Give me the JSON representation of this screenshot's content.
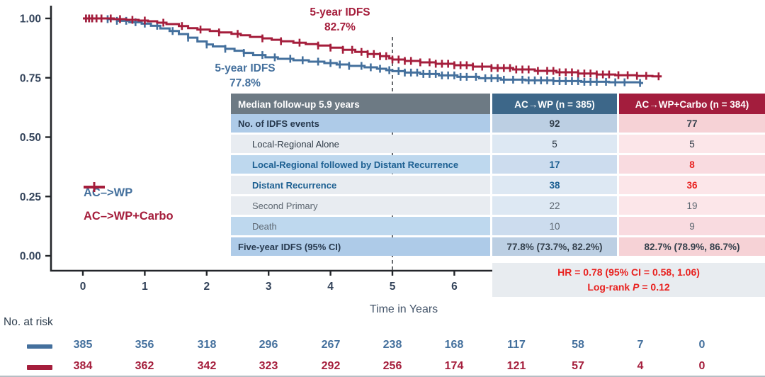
{
  "colors": {
    "wp_blue": "#44709d",
    "carbo_red": "#a51e3c",
    "bright_red": "#e8211f",
    "table_header_gray": "#6d7a84",
    "table_header_blue": "#3d6789",
    "table_header_red": "#a31d3d",
    "axis_text": "#33435a"
  },
  "chart_data": {
    "type": "line",
    "subtype": "kaplan-meier",
    "xlabel": "Time in Years",
    "ylabel": "",
    "xlim": [
      0,
      10.2
    ],
    "ylim": [
      0,
      1
    ],
    "x_ticks": [
      0,
      1,
      2,
      3,
      4,
      5,
      6
    ],
    "y_ticks": [
      {
        "label": "1.00",
        "value": 1.0
      },
      {
        "label": "0.75",
        "value": 0.75
      },
      {
        "label": "0.50",
        "value": 0.5
      },
      {
        "label": "0.25",
        "value": 0.25
      },
      {
        "label": "0.00",
        "value": 0.0
      }
    ],
    "reference_line_year": 5,
    "legend_position": "inside-left",
    "series": [
      {
        "name": "AC–>WP",
        "color": "#44709d",
        "five_year_idfs": "77.8%",
        "points": [
          [
            0,
            1.0
          ],
          [
            0.4,
            0.997
          ],
          [
            0.55,
            0.99
          ],
          [
            0.75,
            0.984
          ],
          [
            0.95,
            0.978
          ],
          [
            1.1,
            0.969
          ],
          [
            1.25,
            0.958
          ],
          [
            1.4,
            0.947
          ],
          [
            1.55,
            0.934
          ],
          [
            1.7,
            0.919
          ],
          [
            1.85,
            0.903
          ],
          [
            2.0,
            0.89
          ],
          [
            2.1,
            0.882
          ],
          [
            2.3,
            0.872
          ],
          [
            2.45,
            0.864
          ],
          [
            2.6,
            0.855
          ],
          [
            2.75,
            0.846
          ],
          [
            2.95,
            0.836
          ],
          [
            3.15,
            0.83
          ],
          [
            3.4,
            0.824
          ],
          [
            3.65,
            0.818
          ],
          [
            3.9,
            0.812
          ],
          [
            4.1,
            0.806
          ],
          [
            4.3,
            0.8
          ],
          [
            4.55,
            0.794
          ],
          [
            4.75,
            0.788
          ],
          [
            4.9,
            0.782
          ],
          [
            5.0,
            0.778
          ],
          [
            5.2,
            0.772
          ],
          [
            5.45,
            0.766
          ],
          [
            5.75,
            0.76
          ],
          [
            6.05,
            0.754
          ],
          [
            6.4,
            0.748
          ],
          [
            6.75,
            0.742
          ],
          [
            7.15,
            0.739
          ],
          [
            7.6,
            0.736
          ],
          [
            8.05,
            0.733
          ],
          [
            8.5,
            0.731
          ],
          [
            9.0,
            0.728
          ],
          [
            9.05,
            0.728
          ]
        ],
        "censor_years": [
          0.05,
          0.1,
          0.15,
          0.22,
          0.3,
          0.4,
          0.55,
          0.7,
          0.85,
          1.0,
          1.2,
          1.45,
          1.7,
          2.0,
          2.3,
          2.6,
          2.9,
          3.1,
          3.35,
          3.55,
          3.8,
          4.0,
          4.15,
          4.3,
          4.5,
          4.65,
          4.8,
          4.95,
          5.1,
          5.2,
          5.3,
          5.4,
          5.5,
          5.6,
          5.7,
          5.8,
          5.9,
          6.0,
          6.1,
          6.2,
          6.35,
          6.5,
          6.6,
          6.7,
          6.8,
          6.95,
          7.1,
          7.2,
          7.3,
          7.4,
          7.5,
          7.6,
          7.7,
          7.8,
          7.9,
          8.0,
          8.1,
          8.2,
          8.3,
          8.45,
          8.6,
          8.75,
          9.0
        ]
      },
      {
        "name": "AC–>WP+Carbo",
        "color": "#a51e3c",
        "five_year_idfs": "82.7%",
        "points": [
          [
            0,
            1.0
          ],
          [
            0.5,
            0.997
          ],
          [
            0.7,
            0.994
          ],
          [
            0.9,
            0.991
          ],
          [
            1.05,
            0.988
          ],
          [
            1.2,
            0.982
          ],
          [
            1.35,
            0.976
          ],
          [
            1.55,
            0.968
          ],
          [
            1.7,
            0.959
          ],
          [
            1.85,
            0.953
          ],
          [
            2.05,
            0.947
          ],
          [
            2.2,
            0.941
          ],
          [
            2.4,
            0.935
          ],
          [
            2.55,
            0.929
          ],
          [
            2.7,
            0.922
          ],
          [
            2.9,
            0.916
          ],
          [
            3.05,
            0.91
          ],
          [
            3.2,
            0.904
          ],
          [
            3.4,
            0.898
          ],
          [
            3.6,
            0.892
          ],
          [
            3.8,
            0.886
          ],
          [
            4.0,
            0.877
          ],
          [
            4.2,
            0.868
          ],
          [
            4.4,
            0.859
          ],
          [
            4.6,
            0.85
          ],
          [
            4.8,
            0.841
          ],
          [
            4.95,
            0.832
          ],
          [
            5.0,
            0.827
          ],
          [
            5.2,
            0.821
          ],
          [
            5.45,
            0.815
          ],
          [
            5.7,
            0.809
          ],
          [
            6.0,
            0.803
          ],
          [
            6.3,
            0.797
          ],
          [
            6.6,
            0.791
          ],
          [
            6.95,
            0.785
          ],
          [
            7.3,
            0.779
          ],
          [
            7.65,
            0.773
          ],
          [
            8.0,
            0.768
          ],
          [
            8.3,
            0.764
          ],
          [
            8.6,
            0.761
          ],
          [
            8.95,
            0.758
          ],
          [
            9.2,
            0.756
          ],
          [
            9.35,
            0.756
          ]
        ],
        "censor_years": [
          0.05,
          0.1,
          0.15,
          0.22,
          0.3,
          0.45,
          0.6,
          0.8,
          1.0,
          1.3,
          1.6,
          1.9,
          2.2,
          2.5,
          2.9,
          3.2,
          3.5,
          3.8,
          4.0,
          4.2,
          4.35,
          4.5,
          4.6,
          4.7,
          4.8,
          4.9,
          5.0,
          5.1,
          5.2,
          5.3,
          5.45,
          5.6,
          5.7,
          5.8,
          5.9,
          6.0,
          6.1,
          6.2,
          6.3,
          6.45,
          6.6,
          6.7,
          6.8,
          6.9,
          7.0,
          7.1,
          7.2,
          7.35,
          7.5,
          7.6,
          7.7,
          7.8,
          7.9,
          8.0,
          8.1,
          8.2,
          8.3,
          8.4,
          8.5,
          8.65,
          8.8,
          8.95,
          9.1,
          9.3
        ]
      }
    ],
    "annotations": [
      {
        "line1": "5-year IDFS",
        "line2": "82.7%",
        "series": "AC–>WP+Carbo"
      },
      {
        "line1": "5-year IDFS",
        "line2": "77.8%",
        "series": "AC–>WP"
      }
    ],
    "risk_table": {
      "label": "No. at risk",
      "years": [
        0,
        1,
        2,
        3,
        4,
        5,
        6,
        7,
        8,
        9,
        10
      ],
      "rows": [
        {
          "name": "AC–>WP",
          "color": "#44709d",
          "counts": [
            385,
            356,
            318,
            296,
            267,
            238,
            168,
            117,
            58,
            7,
            0
          ]
        },
        {
          "name": "AC–>WP+Carbo",
          "color": "#a51e3c",
          "counts": [
            384,
            362,
            342,
            323,
            292,
            256,
            174,
            121,
            57,
            4,
            0
          ]
        }
      ]
    }
  },
  "table": {
    "header": {
      "label": "Median follow-up 5.9 years",
      "wp": "AC→WP (n = 385)",
      "carbo": "AC→WP+Carbo (n = 384)"
    },
    "rows": [
      {
        "label": "No. of IDFS events",
        "wp": "92",
        "carbo": "77",
        "bg": "dark",
        "label_style": "navy-bold",
        "wp_style": "dark-bold",
        "carbo_style": "dark-bold",
        "indent": false
      },
      {
        "label": "Local-Regional Alone",
        "wp": "5",
        "carbo": "5",
        "bg": "light",
        "label_style": "dark",
        "wp_style": "dark",
        "carbo_style": "dark",
        "indent": true
      },
      {
        "label": "Local-Regional followed by Distant Recurrence",
        "wp": "17",
        "carbo": "8",
        "bg": "mid",
        "label_style": "blue-bold",
        "wp_style": "blue-bold",
        "carbo_style": "red-bold",
        "indent": true
      },
      {
        "label": "Distant Recurrence",
        "wp": "38",
        "carbo": "36",
        "bg": "light",
        "label_style": "blue-bold",
        "wp_style": "blue-bold",
        "carbo_style": "red-bold",
        "indent": true
      },
      {
        "label": "Second Primary",
        "wp": "22",
        "carbo": "19",
        "bg": "light",
        "label_style": "gray",
        "wp_style": "gray",
        "carbo_style": "gray",
        "indent": true
      },
      {
        "label": "Death",
        "wp": "10",
        "carbo": "9",
        "bg": "mid",
        "label_style": "gray",
        "wp_style": "gray",
        "carbo_style": "gray",
        "indent": true
      },
      {
        "label": "Five-year IDFS (95% CI)",
        "wp": "77.8% (73.7%, 82.2%)",
        "carbo": "82.7% (78.9%, 86.7%)",
        "bg": "dark",
        "label_style": "navy-bold",
        "wp_style": "dark-bold",
        "carbo_style": "dark-bold",
        "indent": false
      }
    ],
    "footer": {
      "hr_line": "HR = 0.78 (95% CI = 0.58, 1.06)",
      "logrank_prefix": "Log-rank ",
      "logrank_p": "P",
      "logrank_rest": " = 0.12"
    }
  }
}
